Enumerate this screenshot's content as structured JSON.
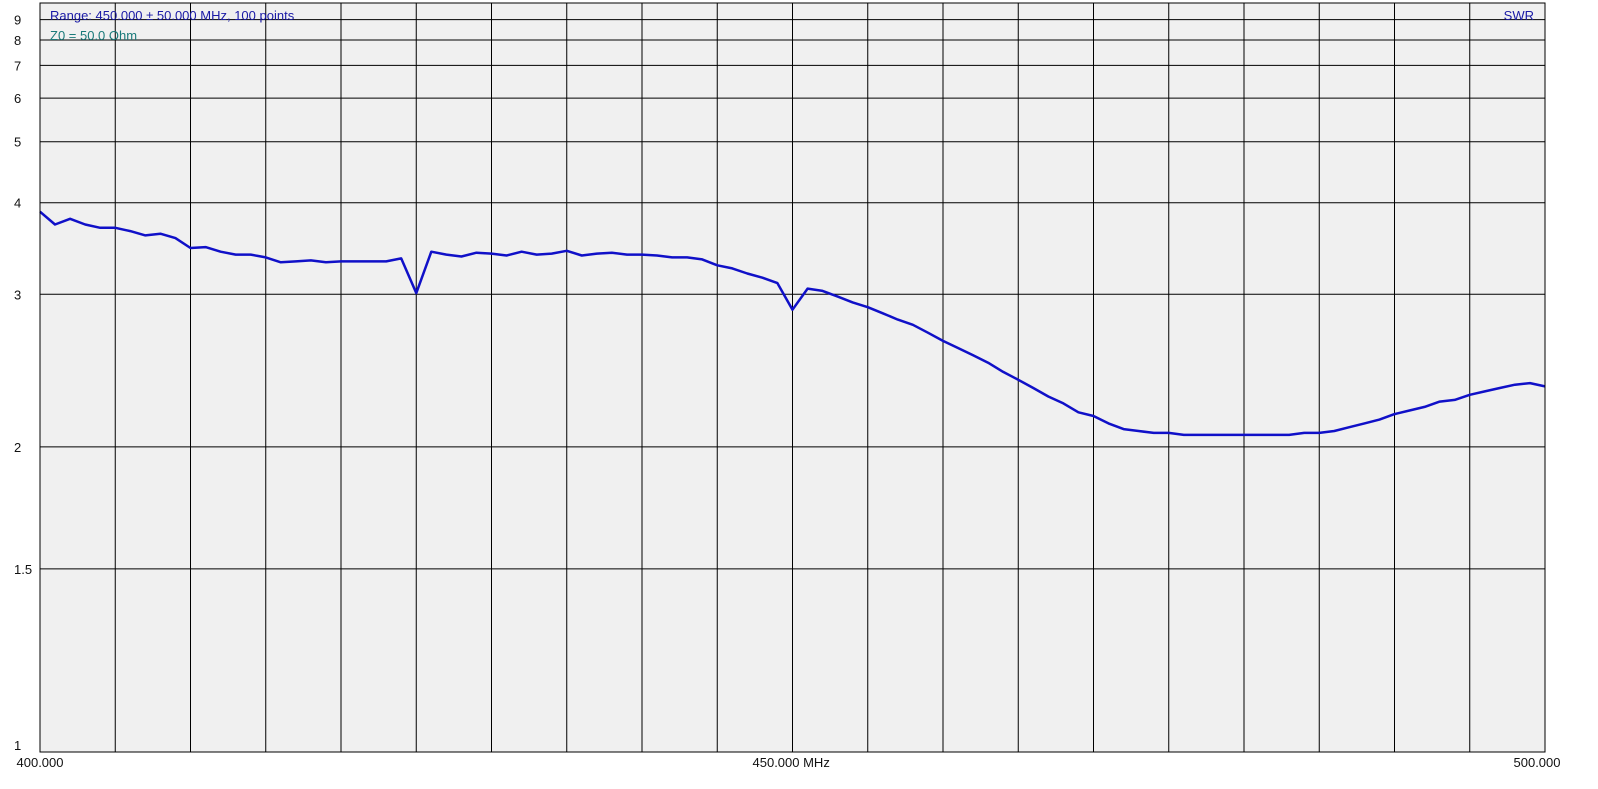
{
  "header": {
    "range_text": "Range: 450.000 ± 50.000 MHz, 100 points",
    "z0_text": "Z0 = 50.0 Ohm",
    "series_text": "SWR"
  },
  "colors": {
    "background": "#f0f0f0",
    "grid": "#000000",
    "trace": "#1010c8"
  },
  "chart_data": {
    "type": "line",
    "title": "",
    "xlabel": "",
    "ylabel": "",
    "xlim": [
      400,
      500
    ],
    "ylim": [
      1,
      10
    ],
    "y_scale": "swr",
    "grid": true,
    "x_grid_divisions": 20,
    "y_ticks": [
      1,
      1.5,
      2,
      3,
      4,
      5,
      6,
      7,
      8,
      9
    ],
    "y_tick_labels": [
      "1",
      "1.5",
      "2",
      "3",
      "4",
      "5",
      "6",
      "7",
      "8",
      "9"
    ],
    "x_tick_labels": [
      {
        "value": 400,
        "label": "400.000"
      },
      {
        "value": 450,
        "label": "450.000 MHz"
      },
      {
        "value": 500,
        "label": "500.000"
      }
    ],
    "series": [
      {
        "name": "SWR",
        "x": [
          400,
          401,
          402,
          403,
          404,
          405,
          406,
          407,
          408,
          409,
          410,
          411,
          412,
          413,
          414,
          415,
          416,
          417,
          418,
          419,
          420,
          421,
          422,
          423,
          424,
          425,
          426,
          427,
          428,
          429,
          430,
          431,
          432,
          433,
          434,
          435,
          436,
          437,
          438,
          439,
          440,
          441,
          442,
          443,
          444,
          445,
          446,
          447,
          448,
          449,
          450,
          451,
          452,
          453,
          454,
          455,
          456,
          457,
          458,
          459,
          460,
          461,
          462,
          463,
          464,
          465,
          466,
          467,
          468,
          469,
          470,
          471,
          472,
          473,
          474,
          475,
          476,
          477,
          478,
          479,
          480,
          481,
          482,
          483,
          484,
          485,
          486,
          487,
          488,
          489,
          490,
          491,
          492,
          493,
          494,
          495,
          496,
          497,
          498,
          499,
          500
        ],
        "y": [
          3.88,
          3.72,
          3.79,
          3.72,
          3.68,
          3.68,
          3.64,
          3.59,
          3.61,
          3.56,
          3.45,
          3.46,
          3.41,
          3.38,
          3.38,
          3.35,
          3.3,
          3.31,
          3.32,
          3.3,
          3.31,
          3.31,
          3.31,
          3.31,
          3.34,
          3.01,
          3.41,
          3.38,
          3.36,
          3.4,
          3.39,
          3.37,
          3.41,
          3.38,
          3.39,
          3.42,
          3.37,
          3.39,
          3.4,
          3.38,
          3.38,
          3.37,
          3.35,
          3.35,
          3.33,
          3.27,
          3.24,
          3.19,
          3.15,
          3.1,
          2.87,
          3.05,
          3.03,
          2.98,
          2.93,
          2.89,
          2.84,
          2.79,
          2.75,
          2.69,
          2.63,
          2.58,
          2.53,
          2.48,
          2.42,
          2.37,
          2.32,
          2.27,
          2.23,
          2.18,
          2.16,
          2.12,
          2.09,
          2.08,
          2.07,
          2.07,
          2.06,
          2.06,
          2.06,
          2.06,
          2.06,
          2.06,
          2.06,
          2.06,
          2.07,
          2.07,
          2.08,
          2.1,
          2.12,
          2.14,
          2.17,
          2.19,
          2.21,
          2.24,
          2.25,
          2.28,
          2.3,
          2.32,
          2.34,
          2.35,
          2.33
        ]
      }
    ]
  }
}
